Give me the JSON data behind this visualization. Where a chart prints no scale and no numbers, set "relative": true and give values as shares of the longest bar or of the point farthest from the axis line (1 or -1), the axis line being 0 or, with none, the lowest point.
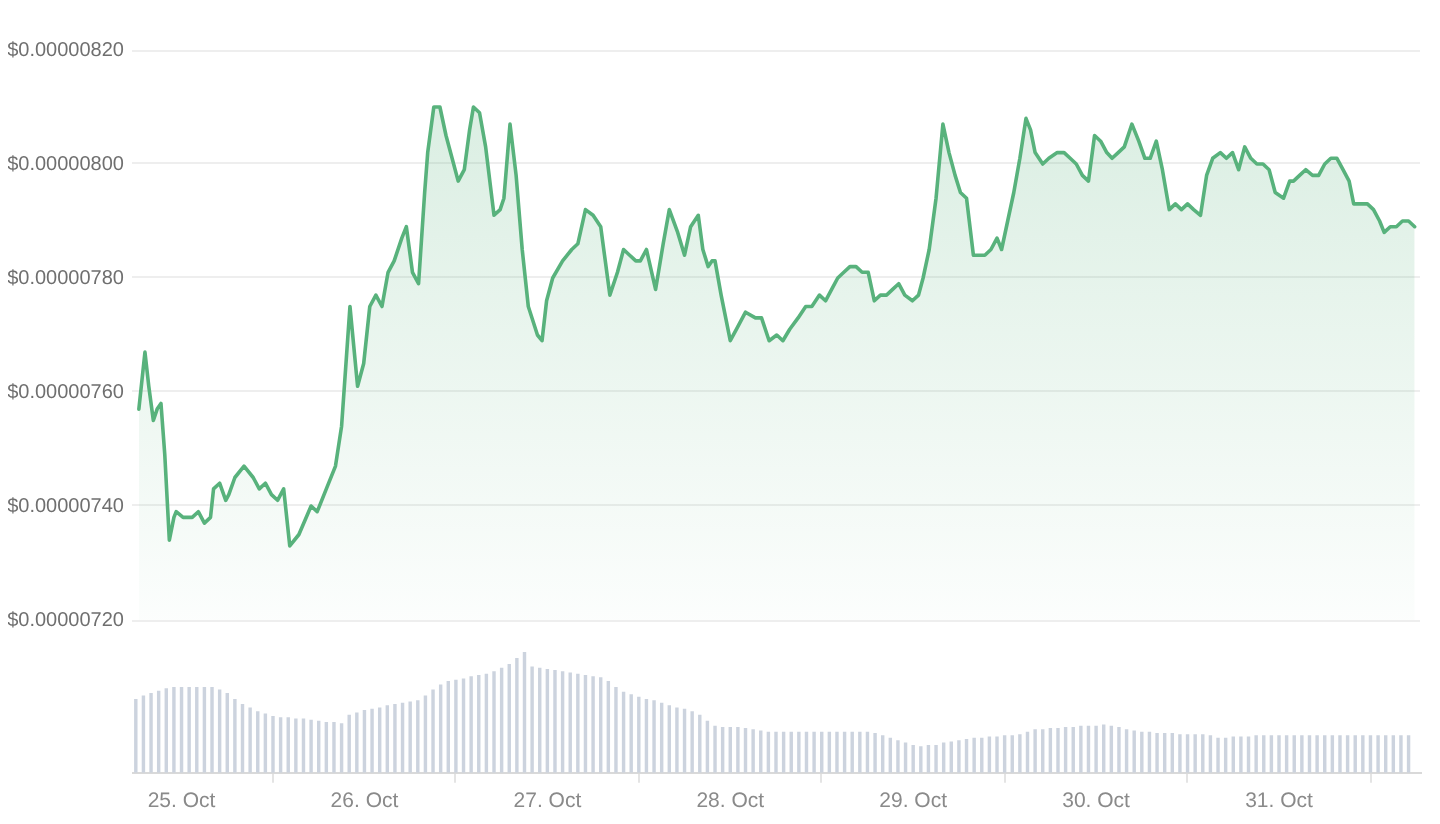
{
  "chart_data": [
    {
      "type": "area",
      "x": [
        "--10-24T18:24",
        "--10-24T19:12",
        "--10-24T19:42",
        "--10-24T20:18",
        "--10-24T20:48",
        "--10-24T21:18",
        "--10-24T21:48",
        "--10-24T22:24",
        "--10-24T23:00",
        "--10-24T23:18",
        "--10-25T00:12",
        "--10-25T01:24",
        "--10-25T02:12",
        "--10-25T03:00",
        "--10-25T03:48",
        "--10-25T04:12",
        "--10-25T05:00",
        "--10-25T05:48",
        "--10-25T06:12",
        "--10-25T07:00",
        "--10-25T08:12",
        "--10-25T09:24",
        "--10-25T10:12",
        "--10-25T11:00",
        "--10-25T11:48",
        "--10-25T12:36",
        "--10-25T13:24",
        "--10-25T14:12",
        "--10-25T15:24",
        "--10-25T17:00",
        "--10-25T17:48",
        "--10-25T19:00",
        "--10-25T20:12",
        "--10-25T21:00",
        "--10-25T22:06",
        "--10-25T23:06",
        "--10-25T23:54",
        "--10-26T00:42",
        "--10-26T01:30",
        "--10-26T02:18",
        "--10-26T03:06",
        "--10-26T03:54",
        "--10-26T04:54",
        "--10-26T05:30",
        "--10-26T06:18",
        "--10-26T07:06",
        "--10-26T07:54",
        "--10-26T08:18",
        "--10-26T09:06",
        "--10-26T09:54",
        "--10-26T10:42",
        "--10-26T11:30",
        "--10-26T12:18",
        "--10-26T13:06",
        "--10-26T13:48",
        "--10-26T14:18",
        "--10-26T15:06",
        "--10-26T15:54",
        "--10-26T17:00",
        "--10-26T17:48",
        "--10-26T18:18",
        "--10-26T19:06",
        "--10-26T19:54",
        "--10-26T20:42",
        "--10-26T21:30",
        "--10-26T22:42",
        "--10-26T23:18",
        "--10-26T23:54",
        "--10-27T00:42",
        "--10-27T02:00",
        "--10-27T03:12",
        "--10-27T04:00",
        "--10-27T05:00",
        "--10-27T06:00",
        "--10-27T07:00",
        "--10-27T08:12",
        "--10-27T09:12",
        "--10-27T10:00",
        "--10-27T10:48",
        "--10-27T11:36",
        "--10-27T12:12",
        "--10-27T13:00",
        "--10-27T14:12",
        "--10-27T15:12",
        "--10-27T16:00",
        "--10-27T17:06",
        "--10-27T18:00",
        "--10-27T18:48",
        "--10-27T19:48",
        "--10-27T20:24",
        "--10-27T21:06",
        "--10-27T21:36",
        "--10-27T22:00",
        "--10-27T22:48",
        "--10-28T00:00",
        "--10-28T00:48",
        "--10-28T02:00",
        "--10-28T03:18",
        "--10-28T04:06",
        "--10-28T05:06",
        "--10-28T06:06",
        "--10-28T06:54",
        "--10-28T07:48",
        "--10-28T08:54",
        "--10-28T09:54",
        "--10-28T10:42",
        "--10-28T11:42",
        "--10-28T12:30",
        "--10-28T13:18",
        "--10-28T14:06",
        "--10-28T14:54",
        "--10-28T15:42",
        "--10-28T16:30",
        "--10-28T17:18",
        "--10-28T18:06",
        "--10-28T18:54",
        "--10-28T19:42",
        "--10-28T20:30",
        "--10-28T21:18",
        "--10-28T22:06",
        "--10-28T22:54",
        "--10-28T23:54",
        "--10-29T00:42",
        "--10-29T01:18",
        "--10-29T02:06",
        "--10-29T03:00",
        "--10-29T03:54",
        "--10-29T04:42",
        "--10-29T05:30",
        "--10-29T06:12",
        "--10-29T07:00",
        "--10-29T07:54",
        "--10-29T09:24",
        "--10-29T10:12",
        "--10-29T11:00",
        "--10-29T11:36",
        "--10-29T12:24",
        "--10-29T13:12",
        "--10-29T14:00",
        "--10-29T14:48",
        "--10-29T15:24",
        "--10-29T16:00",
        "--10-29T17:00",
        "--10-29T17:48",
        "--10-29T18:54",
        "--10-29T19:48",
        "--10-29T20:36",
        "--10-29T21:24",
        "--10-29T22:12",
        "--10-29T23:00",
        "--10-29T23:48",
        "--10-30T00:36",
        "--10-30T01:24",
        "--10-30T02:06",
        "--10-30T02:54",
        "--10-30T03:42",
        "--10-30T04:42",
        "--10-30T05:36",
        "--10-30T06:24",
        "--10-30T07:06",
        "--10-30T07:54",
        "--10-30T08:42",
        "--10-30T09:36",
        "--10-30T10:24",
        "--10-30T11:12",
        "--10-30T12:00",
        "--10-30T12:48",
        "--10-30T13:42",
        "--10-30T14:30",
        "--10-30T15:18",
        "--10-30T16:18",
        "--10-30T17:06",
        "--10-30T17:54",
        "--10-30T18:42",
        "--10-30T19:30",
        "--10-30T20:18",
        "--10-30T21:06",
        "--10-30T21:54",
        "--10-30T22:42",
        "--10-30T23:30",
        "--10-31T00:36",
        "--10-31T01:24",
        "--10-31T01:54",
        "--10-31T02:42",
        "--10-31T03:30",
        "--10-31T04:24",
        "--10-31T05:12",
        "--10-31T06:00",
        "--10-31T06:48",
        "--10-31T07:36",
        "--10-31T08:24",
        "--10-31T09:12",
        "--10-31T09:48",
        "--10-31T10:48",
        "--10-31T11:36",
        "--10-31T12:24",
        "--10-31T13:12",
        "--10-31T13:48",
        "--10-31T14:36",
        "--10-31T15:24",
        "--10-31T16:12",
        "--10-31T17:00",
        "--10-31T17:48"
      ],
      "values": [
        7.57e-06,
        7.67e-06,
        7.61e-06,
        7.55e-06,
        7.57e-06,
        7.58e-06,
        7.49e-06,
        7.34e-06,
        7.38e-06,
        7.39e-06,
        7.38e-06,
        7.38e-06,
        7.39e-06,
        7.37e-06,
        7.38e-06,
        7.43e-06,
        7.44e-06,
        7.41e-06,
        7.42e-06,
        7.45e-06,
        7.47e-06,
        7.45e-06,
        7.43e-06,
        7.44e-06,
        7.42e-06,
        7.41e-06,
        7.43e-06,
        7.33e-06,
        7.35e-06,
        7.4e-06,
        7.39e-06,
        7.43e-06,
        7.47e-06,
        7.54e-06,
        7.75e-06,
        7.61e-06,
        7.65e-06,
        7.75e-06,
        7.77e-06,
        7.75e-06,
        7.81e-06,
        7.83e-06,
        7.87e-06,
        7.89e-06,
        7.81e-06,
        7.79e-06,
        7.95e-06,
        8.02e-06,
        8.1e-06,
        8.1e-06,
        8.05e-06,
        8.01e-06,
        7.97e-06,
        7.99e-06,
        8.06e-06,
        8.1e-06,
        8.09e-06,
        8.03e-06,
        7.91e-06,
        7.92e-06,
        7.94e-06,
        8.07e-06,
        7.98e-06,
        7.85e-06,
        7.75e-06,
        7.7e-06,
        7.69e-06,
        7.76e-06,
        7.8e-06,
        7.83e-06,
        7.85e-06,
        7.86e-06,
        7.92e-06,
        7.91e-06,
        7.89e-06,
        7.77e-06,
        7.81e-06,
        7.85e-06,
        7.84e-06,
        7.83e-06,
        7.83e-06,
        7.85e-06,
        7.78e-06,
        7.86e-06,
        7.92e-06,
        7.88e-06,
        7.84e-06,
        7.89e-06,
        7.91e-06,
        7.85e-06,
        7.82e-06,
        7.83e-06,
        7.83e-06,
        7.77e-06,
        7.69e-06,
        7.71e-06,
        7.74e-06,
        7.73e-06,
        7.73e-06,
        7.69e-06,
        7.7e-06,
        7.69e-06,
        7.71e-06,
        7.73e-06,
        7.75e-06,
        7.75e-06,
        7.77e-06,
        7.76e-06,
        7.78e-06,
        7.8e-06,
        7.81e-06,
        7.82e-06,
        7.82e-06,
        7.81e-06,
        7.81e-06,
        7.76e-06,
        7.77e-06,
        7.77e-06,
        7.78e-06,
        7.79e-06,
        7.77e-06,
        7.76e-06,
        7.77e-06,
        7.8e-06,
        7.85e-06,
        7.94e-06,
        8.07e-06,
        8.02e-06,
        7.98e-06,
        7.95e-06,
        7.94e-06,
        7.84e-06,
        7.84e-06,
        7.85e-06,
        7.87e-06,
        7.85e-06,
        7.9e-06,
        7.95e-06,
        8.01e-06,
        8.08e-06,
        8.06e-06,
        8.02e-06,
        8e-06,
        8.01e-06,
        8.02e-06,
        8.02e-06,
        8.01e-06,
        8e-06,
        7.98e-06,
        7.97e-06,
        8.05e-06,
        8.04e-06,
        8.02e-06,
        8.01e-06,
        8.02e-06,
        8.03e-06,
        8.07e-06,
        8.04e-06,
        8.01e-06,
        8.01e-06,
        8.04e-06,
        7.99e-06,
        7.92e-06,
        7.93e-06,
        7.92e-06,
        7.93e-06,
        7.92e-06,
        7.91e-06,
        7.98e-06,
        8.01e-06,
        8.02e-06,
        8.01e-06,
        8.02e-06,
        7.99e-06,
        8.03e-06,
        8.01e-06,
        8e-06,
        8e-06,
        7.99e-06,
        7.95e-06,
        7.94e-06,
        7.97e-06,
        7.97e-06,
        7.98e-06,
        7.99e-06,
        7.98e-06,
        7.98e-06,
        8e-06,
        8.01e-06,
        8.01e-06,
        7.99e-06,
        7.97e-06,
        7.93e-06,
        7.93e-06,
        7.93e-06,
        7.92e-06,
        7.9e-06,
        7.88e-06,
        7.89e-06,
        7.89e-06,
        7.9e-06,
        7.9e-06,
        7.89e-06
      ],
      "color": "#58b27c",
      "xlim": [
        "--10-24T17:30",
        "--10-31T18:30"
      ],
      "ylim": [
        7.2e-06,
        8.2e-06
      ],
      "yticks": [
        {
          "value": 7.2e-06,
          "label": "$0.00000720"
        },
        {
          "value": 7.4e-06,
          "label": "$0.00000740"
        },
        {
          "value": 7.6e-06,
          "label": "$0.00000760"
        },
        {
          "value": 7.8e-06,
          "label": "$0.00000780"
        },
        {
          "value": 8e-06,
          "label": "$0.00000800"
        },
        {
          "value": 8.2e-06,
          "label": "$0.00000820"
        }
      ],
      "grid": "y",
      "tick_labels": "y"
    },
    {
      "type": "bar",
      "x": [
        "--10-24T18:00",
        "--10-24T19:00",
        "--10-24T20:00",
        "--10-24T21:00",
        "--10-24T22:00",
        "--10-24T23:00",
        "--10-25T00:00",
        "--10-25T01:00",
        "--10-25T02:00",
        "--10-25T03:00",
        "--10-25T04:00",
        "--10-25T05:00",
        "--10-25T06:00",
        "--10-25T07:00",
        "--10-25T08:00",
        "--10-25T09:00",
        "--10-25T10:00",
        "--10-25T11:00",
        "--10-25T12:00",
        "--10-25T13:00",
        "--10-25T14:00",
        "--10-25T15:00",
        "--10-25T16:00",
        "--10-25T17:00",
        "--10-25T18:00",
        "--10-25T19:00",
        "--10-25T20:00",
        "--10-25T21:00",
        "--10-25T22:00",
        "--10-25T23:00",
        "--10-26T00:00",
        "--10-26T01:00",
        "--10-26T02:00",
        "--10-26T03:00",
        "--10-26T04:00",
        "--10-26T05:00",
        "--10-26T06:00",
        "--10-26T07:00",
        "--10-26T08:00",
        "--10-26T09:00",
        "--10-26T10:00",
        "--10-26T11:00",
        "--10-26T12:00",
        "--10-26T13:00",
        "--10-26T14:00",
        "--10-26T15:00",
        "--10-26T16:00",
        "--10-26T17:00",
        "--10-26T18:00",
        "--10-26T19:00",
        "--10-26T20:00",
        "--10-26T21:00",
        "--10-26T22:00",
        "--10-26T23:00",
        "--10-27T00:00",
        "--10-27T01:00",
        "--10-27T02:00",
        "--10-27T03:00",
        "--10-27T04:00",
        "--10-27T05:00",
        "--10-27T06:00",
        "--10-27T07:00",
        "--10-27T08:00",
        "--10-27T09:00",
        "--10-27T10:00",
        "--10-27T11:00",
        "--10-27T12:00",
        "--10-27T13:00",
        "--10-27T14:00",
        "--10-27T15:00",
        "--10-27T16:00",
        "--10-27T17:00",
        "--10-27T18:00",
        "--10-27T19:00",
        "--10-27T20:00",
        "--10-27T21:00",
        "--10-27T22:00",
        "--10-27T23:00",
        "--10-28T00:00",
        "--10-28T01:00",
        "--10-28T02:00",
        "--10-28T03:00",
        "--10-28T04:00",
        "--10-28T05:00",
        "--10-28T06:00",
        "--10-28T07:00",
        "--10-28T08:00",
        "--10-28T09:00",
        "--10-28T10:00",
        "--10-28T11:00",
        "--10-28T12:00",
        "--10-28T13:00",
        "--10-28T14:00",
        "--10-28T15:00",
        "--10-28T16:00",
        "--10-28T17:00",
        "--10-28T18:00",
        "--10-28T19:00",
        "--10-28T20:00",
        "--10-28T21:00",
        "--10-28T22:00",
        "--10-28T23:00",
        "--10-29T00:00",
        "--10-29T01:00",
        "--10-29T02:00",
        "--10-29T03:00",
        "--10-29T04:00",
        "--10-29T05:00",
        "--10-29T06:00",
        "--10-29T07:00",
        "--10-29T08:00",
        "--10-29T09:00",
        "--10-29T10:00",
        "--10-29T11:00",
        "--10-29T12:00",
        "--10-29T13:00",
        "--10-29T14:00",
        "--10-29T15:00",
        "--10-29T16:00",
        "--10-29T17:00",
        "--10-29T18:00",
        "--10-29T19:00",
        "--10-29T20:00",
        "--10-29T21:00",
        "--10-29T22:00",
        "--10-29T23:00",
        "--10-30T00:00",
        "--10-30T01:00",
        "--10-30T02:00",
        "--10-30T03:00",
        "--10-30T04:00",
        "--10-30T05:00",
        "--10-30T06:00",
        "--10-30T07:00",
        "--10-30T08:00",
        "--10-30T09:00",
        "--10-30T10:00",
        "--10-30T11:00",
        "--10-30T12:00",
        "--10-30T13:00",
        "--10-30T14:00",
        "--10-30T15:00",
        "--10-30T16:00",
        "--10-30T17:00",
        "--10-30T18:00",
        "--10-30T19:00",
        "--10-30T20:00",
        "--10-30T21:00",
        "--10-30T22:00",
        "--10-30T23:00",
        "--10-31T00:00",
        "--10-31T01:00",
        "--10-31T02:00",
        "--10-31T03:00",
        "--10-31T04:00",
        "--10-31T05:00",
        "--10-31T06:00",
        "--10-31T07:00",
        "--10-31T08:00",
        "--10-31T09:00",
        "--10-31T10:00",
        "--10-31T11:00",
        "--10-31T12:00",
        "--10-31T13:00",
        "--10-31T14:00",
        "--10-31T15:00",
        "--10-31T16:00",
        "--10-31T17:00"
      ],
      "values": [
        0.61,
        0.64,
        0.66,
        0.68,
        0.7,
        0.71,
        0.71,
        0.71,
        0.71,
        0.71,
        0.71,
        0.69,
        0.66,
        0.61,
        0.57,
        0.54,
        0.51,
        0.49,
        0.47,
        0.46,
        0.46,
        0.45,
        0.45,
        0.44,
        0.43,
        0.42,
        0.42,
        0.41,
        0.48,
        0.5,
        0.52,
        0.53,
        0.54,
        0.56,
        0.57,
        0.58,
        0.59,
        0.6,
        0.64,
        0.69,
        0.73,
        0.76,
        0.77,
        0.78,
        0.8,
        0.81,
        0.82,
        0.84,
        0.87,
        0.9,
        0.95,
        1,
        0.88,
        0.87,
        0.86,
        0.85,
        0.84,
        0.83,
        0.82,
        0.81,
        0.8,
        0.79,
        0.76,
        0.71,
        0.67,
        0.65,
        0.63,
        0.61,
        0.6,
        0.58,
        0.56,
        0.54,
        0.53,
        0.51,
        0.48,
        0.43,
        0.39,
        0.38,
        0.38,
        0.38,
        0.37,
        0.36,
        0.35,
        0.34,
        0.34,
        0.34,
        0.34,
        0.34,
        0.34,
        0.34,
        0.34,
        0.34,
        0.34,
        0.34,
        0.34,
        0.34,
        0.34,
        0.33,
        0.31,
        0.29,
        0.27,
        0.25,
        0.23,
        0.22,
        0.23,
        0.23,
        0.25,
        0.26,
        0.27,
        0.28,
        0.29,
        0.29,
        0.3,
        0.3,
        0.31,
        0.31,
        0.32,
        0.34,
        0.36,
        0.36,
        0.37,
        0.37,
        0.38,
        0.38,
        0.39,
        0.39,
        0.39,
        0.4,
        0.39,
        0.38,
        0.36,
        0.35,
        0.34,
        0.34,
        0.33,
        0.33,
        0.33,
        0.32,
        0.32,
        0.32,
        0.32,
        0.31,
        0.29,
        0.29,
        0.3,
        0.3,
        0.3,
        0.31,
        0.31,
        0.31,
        0.31,
        0.31,
        0.31,
        0.31,
        0.31,
        0.31,
        0.31,
        0.31,
        0.31,
        0.31,
        0.31,
        0.31,
        0.31,
        0.31,
        0.31,
        0.31,
        0.31,
        0.31
      ],
      "color": "#ccd3de",
      "relative": true,
      "xlim": [
        "--10-24T17:30",
        "--10-31T18:30"
      ],
      "xticks": [
        {
          "value": "--10-25",
          "label": "25. Oct"
        },
        {
          "value": "--10-26",
          "label": "26. Oct"
        },
        {
          "value": "--10-27",
          "label": "27. Oct"
        },
        {
          "value": "--10-28",
          "label": "28. Oct"
        },
        {
          "value": "--10-29",
          "label": "29. Oct"
        },
        {
          "value": "--10-30",
          "label": "30. Oct"
        },
        {
          "value": "--10-31",
          "label": "31. Oct"
        }
      ],
      "tick_labels": "x"
    }
  ]
}
